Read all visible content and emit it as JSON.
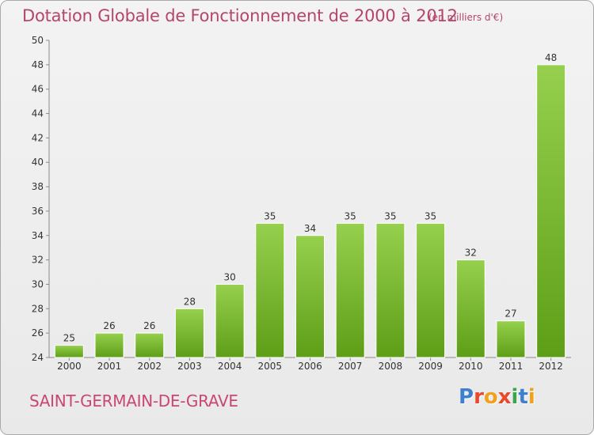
{
  "header": {
    "title": "Dotation Globale de Fonctionnement de 2000 à 2012",
    "unit": "(en milliers d'€)"
  },
  "footer": {
    "commune": "SAINT-GERMAIN-DE-GRAVE",
    "logo": "Proxiti"
  },
  "colors": {
    "title": "#b5456a",
    "commune": "#c84775",
    "bar_top": "#96d04e",
    "bar_bottom": "#5e9e17",
    "logo_letters": [
      "#3f7fd0",
      "#e8482b",
      "#f0a21c",
      "#e8482b",
      "#3aa54a",
      "#3f7fd0",
      "#f0a21c"
    ]
  },
  "chart_data": {
    "type": "bar",
    "title": "Dotation Globale de Fonctionnement de 2000 à 2012",
    "subtitle": "(en milliers d'€)",
    "categories": [
      "2000",
      "2001",
      "2002",
      "2003",
      "2004",
      "2005",
      "2006",
      "2007",
      "2008",
      "2009",
      "2010",
      "2011",
      "2012"
    ],
    "values": [
      25,
      26,
      26,
      28,
      30,
      35,
      34,
      35,
      35,
      35,
      32,
      27,
      48
    ],
    "ylim": [
      24,
      50
    ],
    "yticks": [
      24,
      26,
      28,
      30,
      32,
      34,
      36,
      38,
      40,
      42,
      44,
      46,
      48,
      50
    ],
    "grid": false,
    "legend": "none",
    "xlabel": "",
    "ylabel": ""
  }
}
